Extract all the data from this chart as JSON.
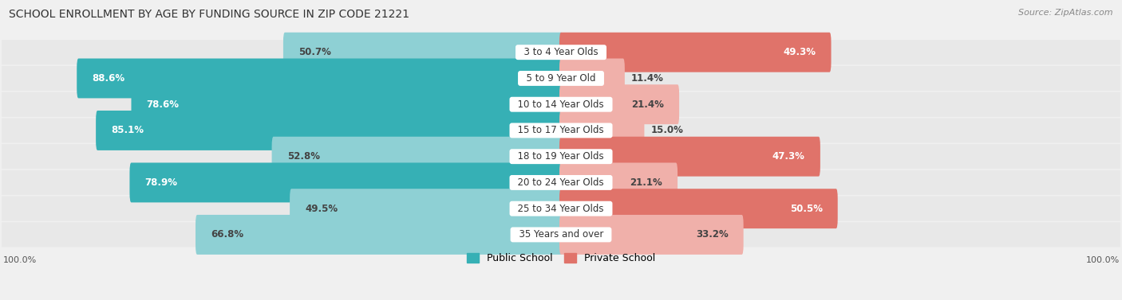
{
  "title": "SCHOOL ENROLLMENT BY AGE BY FUNDING SOURCE IN ZIP CODE 21221",
  "source": "Source: ZipAtlas.com",
  "categories": [
    "3 to 4 Year Olds",
    "5 to 9 Year Old",
    "10 to 14 Year Olds",
    "15 to 17 Year Olds",
    "18 to 19 Year Olds",
    "20 to 24 Year Olds",
    "25 to 34 Year Olds",
    "35 Years and over"
  ],
  "public_values": [
    50.7,
    88.6,
    78.6,
    85.1,
    52.8,
    78.9,
    49.5,
    66.8
  ],
  "private_values": [
    49.3,
    11.4,
    21.4,
    15.0,
    47.3,
    21.1,
    50.5,
    33.2
  ],
  "public_color_dark": "#36b0b5",
  "public_color_light": "#8ed0d4",
  "private_color_dark": "#e0736a",
  "private_color_light": "#f0b0aa",
  "row_bg_color": "#e8e8e8",
  "fig_bg_color": "#f0f0f0",
  "bar_max": 100.0,
  "title_fontsize": 10,
  "source_fontsize": 8,
  "value_fontsize": 8.5,
  "category_fontsize": 8.5,
  "legend_fontsize": 9,
  "axis_tick_fontsize": 8
}
